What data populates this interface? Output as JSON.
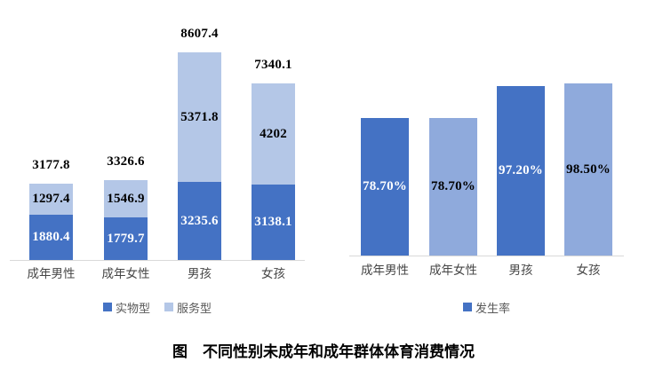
{
  "caption": "图　不同性别未成年和成年群体体育消费情况",
  "colors": {
    "dark_blue": "#4472C4",
    "light_blue_stacked": "#B4C7E7",
    "light_blue_rate": "#8FAADC",
    "axis_line": "#D9D9D9",
    "label_on_dark": "#FFFFFF",
    "label_on_light": "#000000"
  },
  "chart_data": [
    {
      "type": "bar",
      "subtype": "stacked",
      "title": "",
      "xlabel": "",
      "ylabel": "",
      "categories": [
        "成年男性",
        "成年女性",
        "男孩",
        "女孩"
      ],
      "series": [
        {
          "name": "实物型",
          "values": [
            1880.4,
            1779.7,
            3235.6,
            3138.1
          ],
          "color": "#4472C4"
        },
        {
          "name": "服务型",
          "values": [
            1297.4,
            1546.9,
            5371.8,
            4202
          ],
          "color": "#B4C7E7"
        }
      ],
      "totals": [
        3177.8,
        3326.6,
        8607.4,
        7340.1
      ],
      "ylim": [
        0,
        9000
      ],
      "grid": false,
      "legend_position": "bottom"
    },
    {
      "type": "bar",
      "title": "",
      "xlabel": "",
      "ylabel": "",
      "categories": [
        "成年男性",
        "成年女性",
        "男孩",
        "女孩"
      ],
      "series": [
        {
          "name": "发生率",
          "values": [
            78.7,
            78.7,
            97.2,
            98.5
          ]
        }
      ],
      "labels": [
        "78.70%",
        "78.70%",
        "97.20%",
        "98.50%"
      ],
      "bar_colors": [
        "#4472C4",
        "#8FAADC",
        "#4472C4",
        "#8FAADC"
      ],
      "label_colors": [
        "#FFFFFF",
        "#000000",
        "#FFFFFF",
        "#000000"
      ],
      "ylim": [
        0,
        100
      ],
      "grid": false,
      "legend_position": "bottom"
    }
  ]
}
